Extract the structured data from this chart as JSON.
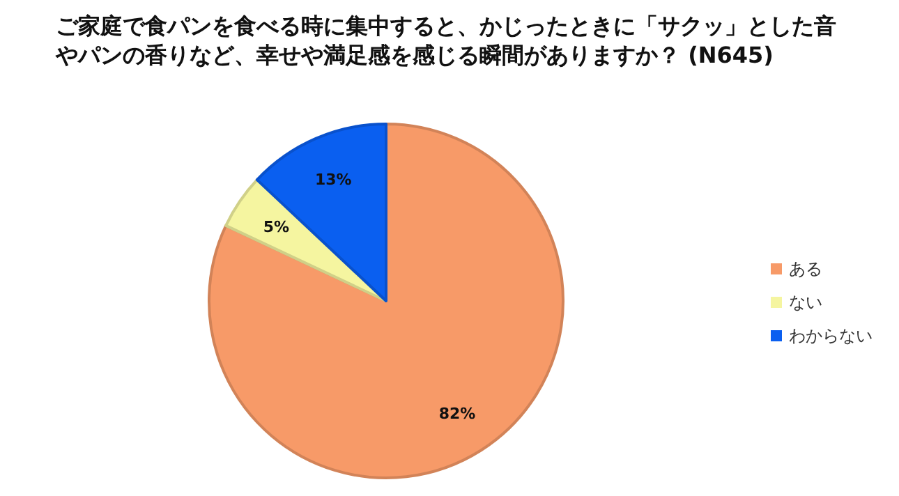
{
  "chart_data": {
    "type": "pie",
    "title": "ご家庭で食パンを食べる時に集中すると、かじったときに「サクッ」とした音やパンの香りなど、幸せや満足感を感じる瞬間がありますか？ (N645)",
    "categories": [
      "ある",
      "ない",
      "わからない"
    ],
    "values": [
      82,
      5,
      13
    ],
    "value_labels": [
      "82%",
      "5%",
      "13%"
    ],
    "colors": [
      "#f79a68",
      "#f5f5a0",
      "#0a5ff0"
    ],
    "legend": "right"
  }
}
